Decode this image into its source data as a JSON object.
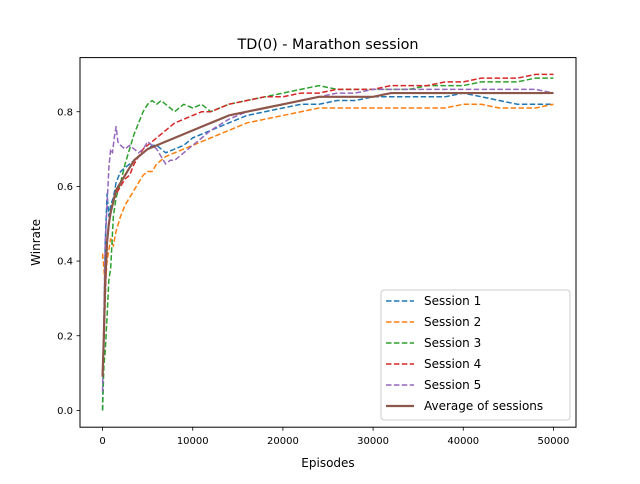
{
  "chart_data": {
    "type": "line",
    "title": "TD(0) - Marathon session",
    "xlabel": "Episodes",
    "ylabel": "Winrate",
    "xlim": [
      -2500,
      52500
    ],
    "ylim": [
      -0.045,
      0.945
    ],
    "x_ticks": [
      0,
      10000,
      20000,
      30000,
      40000,
      50000
    ],
    "x_tick_labels": [
      "0",
      "10000",
      "20000",
      "30000",
      "40000",
      "50000"
    ],
    "y_ticks": [
      0.0,
      0.2,
      0.4,
      0.6,
      0.8
    ],
    "y_tick_labels": [
      "0.0",
      "0.2",
      "0.4",
      "0.6",
      "0.8"
    ],
    "grid": false,
    "legend_position": "lower right",
    "series": [
      {
        "name": "Session 1",
        "color": "#1f77b4",
        "style": "dashed",
        "x": [
          0,
          150,
          300,
          500,
          700,
          900,
          1200,
          1500,
          2000,
          2500,
          3000,
          3500,
          4000,
          4500,
          5000,
          5500,
          6000,
          6500,
          7000,
          8000,
          9000,
          10000,
          11000,
          12000,
          14000,
          16000,
          18000,
          20000,
          22000,
          24000,
          26000,
          28000,
          30000,
          32000,
          34000,
          36000,
          38000,
          40000,
          42000,
          44000,
          46000,
          48000,
          50000
        ],
        "y": [
          0.0,
          0.2,
          0.45,
          0.58,
          0.52,
          0.55,
          0.57,
          0.61,
          0.64,
          0.65,
          0.66,
          0.67,
          0.68,
          0.69,
          0.7,
          0.71,
          0.71,
          0.7,
          0.69,
          0.7,
          0.71,
          0.73,
          0.74,
          0.75,
          0.77,
          0.79,
          0.8,
          0.81,
          0.82,
          0.82,
          0.83,
          0.83,
          0.84,
          0.84,
          0.84,
          0.84,
          0.84,
          0.85,
          0.84,
          0.83,
          0.82,
          0.82,
          0.82
        ]
      },
      {
        "name": "Session 2",
        "color": "#ff7f0e",
        "style": "dashed",
        "x": [
          0,
          150,
          300,
          500,
          700,
          900,
          1200,
          1500,
          2000,
          2500,
          3000,
          3500,
          4000,
          4500,
          5000,
          5500,
          6000,
          7000,
          8000,
          9000,
          10000,
          11000,
          12000,
          14000,
          16000,
          18000,
          20000,
          22000,
          24000,
          26000,
          28000,
          30000,
          32000,
          34000,
          36000,
          38000,
          40000,
          42000,
          44000,
          46000,
          48000,
          50000
        ],
        "y": [
          0.42,
          0.38,
          0.33,
          0.4,
          0.43,
          0.46,
          0.44,
          0.48,
          0.52,
          0.55,
          0.57,
          0.59,
          0.61,
          0.63,
          0.64,
          0.64,
          0.66,
          0.68,
          0.69,
          0.7,
          0.71,
          0.72,
          0.73,
          0.75,
          0.77,
          0.78,
          0.79,
          0.8,
          0.81,
          0.81,
          0.81,
          0.81,
          0.81,
          0.81,
          0.81,
          0.81,
          0.82,
          0.82,
          0.81,
          0.81,
          0.81,
          0.82
        ]
      },
      {
        "name": "Session 3",
        "color": "#2ca02c",
        "style": "dashed",
        "x": [
          0,
          150,
          300,
          500,
          700,
          900,
          1200,
          1500,
          2000,
          2500,
          3000,
          3500,
          4000,
          4500,
          5000,
          5500,
          6000,
          6500,
          7000,
          7500,
          8000,
          8500,
          9000,
          10000,
          11000,
          12000,
          14000,
          16000,
          18000,
          20000,
          22000,
          24000,
          26000,
          28000,
          30000,
          32000,
          34000,
          36000,
          38000,
          40000,
          42000,
          44000,
          46000,
          48000,
          50000
        ],
        "y": [
          0.0,
          0.12,
          0.16,
          0.25,
          0.35,
          0.38,
          0.52,
          0.57,
          0.61,
          0.66,
          0.7,
          0.74,
          0.77,
          0.8,
          0.82,
          0.83,
          0.82,
          0.83,
          0.82,
          0.81,
          0.8,
          0.81,
          0.82,
          0.81,
          0.82,
          0.8,
          0.82,
          0.83,
          0.84,
          0.85,
          0.86,
          0.87,
          0.86,
          0.86,
          0.86,
          0.86,
          0.86,
          0.87,
          0.87,
          0.87,
          0.88,
          0.88,
          0.88,
          0.89,
          0.89
        ]
      },
      {
        "name": "Session 4",
        "color": "#d62728",
        "style": "dashed",
        "x": [
          0,
          150,
          300,
          500,
          700,
          900,
          1200,
          1500,
          2000,
          2500,
          3000,
          3500,
          4000,
          4500,
          5000,
          5500,
          6000,
          7000,
          8000,
          9000,
          10000,
          11000,
          12000,
          14000,
          16000,
          18000,
          20000,
          22000,
          24000,
          26000,
          28000,
          30000,
          32000,
          34000,
          36000,
          38000,
          40000,
          42000,
          44000,
          46000,
          48000,
          50000
        ],
        "y": [
          0.1,
          0.2,
          0.3,
          0.45,
          0.5,
          0.53,
          0.56,
          0.58,
          0.6,
          0.62,
          0.63,
          0.66,
          0.68,
          0.7,
          0.71,
          0.72,
          0.73,
          0.75,
          0.77,
          0.78,
          0.79,
          0.8,
          0.8,
          0.82,
          0.83,
          0.84,
          0.84,
          0.85,
          0.85,
          0.86,
          0.86,
          0.86,
          0.87,
          0.87,
          0.87,
          0.88,
          0.88,
          0.89,
          0.89,
          0.89,
          0.9,
          0.9
        ]
      },
      {
        "name": "Session 5",
        "color": "#9467bd",
        "style": "dashed",
        "x": [
          0,
          150,
          300,
          500,
          700,
          900,
          1100,
          1300,
          1500,
          1700,
          2000,
          2500,
          3000,
          3500,
          4000,
          4500,
          5000,
          5500,
          6000,
          6500,
          7000,
          7500,
          8000,
          9000,
          10000,
          11000,
          12000,
          14000,
          16000,
          18000,
          20000,
          22000,
          24000,
          26000,
          28000,
          30000,
          32000,
          34000,
          36000,
          38000,
          40000,
          42000,
          44000,
          46000,
          48000,
          50000
        ],
        "y": [
          0.05,
          0.25,
          0.45,
          0.55,
          0.65,
          0.7,
          0.69,
          0.73,
          0.76,
          0.72,
          0.71,
          0.7,
          0.71,
          0.7,
          0.69,
          0.7,
          0.72,
          0.71,
          0.7,
          0.68,
          0.66,
          0.67,
          0.67,
          0.69,
          0.71,
          0.73,
          0.75,
          0.78,
          0.8,
          0.81,
          0.82,
          0.83,
          0.84,
          0.85,
          0.85,
          0.86,
          0.86,
          0.86,
          0.86,
          0.86,
          0.86,
          0.86,
          0.86,
          0.86,
          0.86,
          0.85
        ]
      },
      {
        "name": "Average of sessions",
        "color": "#8c564b",
        "style": "solid",
        "x": [
          0,
          150,
          300,
          500,
          700,
          900,
          1200,
          1500,
          2000,
          2500,
          3000,
          3500,
          4000,
          4500,
          5000,
          6000,
          7000,
          8000,
          9000,
          10000,
          11000,
          12000,
          14000,
          16000,
          18000,
          20000,
          22000,
          24000,
          26000,
          28000,
          30000,
          32000,
          34000,
          36000,
          38000,
          40000,
          42000,
          44000,
          46000,
          48000,
          50000
        ],
        "y": [
          0.09,
          0.2,
          0.35,
          0.45,
          0.5,
          0.53,
          0.56,
          0.59,
          0.61,
          0.63,
          0.65,
          0.67,
          0.68,
          0.69,
          0.7,
          0.71,
          0.72,
          0.73,
          0.74,
          0.75,
          0.76,
          0.77,
          0.79,
          0.8,
          0.81,
          0.82,
          0.83,
          0.84,
          0.84,
          0.84,
          0.84,
          0.85,
          0.85,
          0.85,
          0.85,
          0.85,
          0.85,
          0.85,
          0.85,
          0.85,
          0.85
        ]
      }
    ]
  }
}
